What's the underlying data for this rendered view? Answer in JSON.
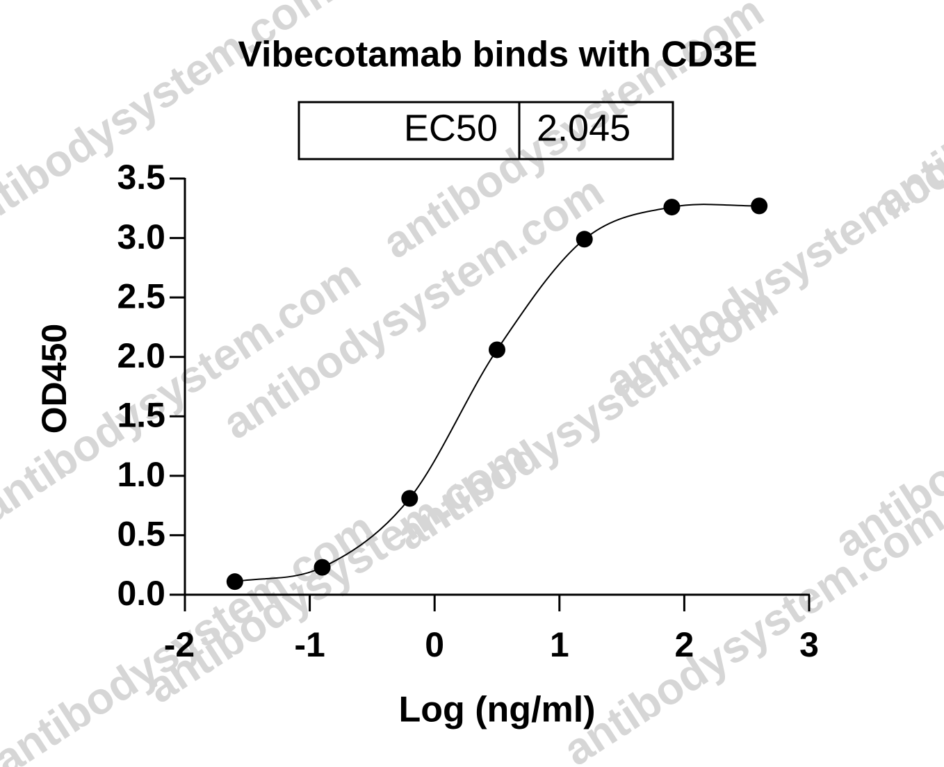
{
  "chart_data": {
    "type": "scatter",
    "title": "Vibecotamab binds with CD3E",
    "ec50_label": "EC50",
    "ec50_value": "2.045",
    "x_label": "Log (ng/ml)",
    "y_label": "OD450",
    "watermark": "antibodysystem.com",
    "x": [
      -1.6,
      -0.9,
      -0.2,
      0.5,
      1.2,
      1.9,
      2.6
    ],
    "values": [
      0.11,
      0.23,
      0.81,
      2.06,
      2.99,
      3.26,
      3.27
    ],
    "color": "#000000",
    "xlim": [
      -2,
      3
    ],
    "xticks": [
      -2,
      -1,
      0,
      1,
      2,
      3
    ],
    "ylim": [
      0,
      3.5
    ],
    "yticks": [
      {
        "value": 0,
        "label": "0.0"
      },
      0.5,
      {
        "value": 1,
        "label": "1.0"
      },
      1.5,
      {
        "value": 2,
        "label": "2.0"
      },
      2.5,
      {
        "value": 3,
        "label": "3.0"
      },
      3.5
    ]
  }
}
